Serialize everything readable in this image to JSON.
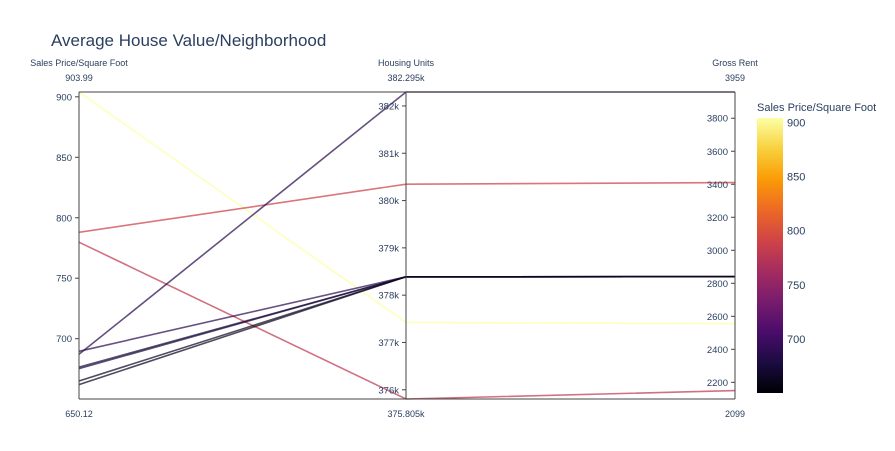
{
  "chart_data": {
    "type": "parallel_coordinates",
    "title": "Average House Value/Neighborhood",
    "dimensions": [
      {
        "label": "Sales Price/Square Foot",
        "range": [
          650.12,
          903.99
        ],
        "range_labels": {
          "max": "903.99",
          "min": "650.12"
        },
        "ticks": [
          700,
          750,
          800,
          850,
          900
        ],
        "tick_labels": [
          "700",
          "750",
          "800",
          "850",
          "900"
        ]
      },
      {
        "label": "Housing Units",
        "range": [
          375805,
          382295
        ],
        "range_labels": {
          "max": "382.295k",
          "min": "375.805k"
        },
        "ticks": [
          376000,
          377000,
          378000,
          379000,
          380000,
          381000,
          382000
        ],
        "tick_labels": [
          "376k",
          "377k",
          "378k",
          "379k",
          "380k",
          "381k",
          "382k"
        ]
      },
      {
        "label": "Gross Rent",
        "range": [
          2099,
          3959
        ],
        "range_labels": {
          "max": "3959",
          "min": "2099"
        },
        "ticks": [
          2200,
          2400,
          2600,
          2800,
          3000,
          3200,
          3400,
          3600,
          3800
        ],
        "tick_labels": [
          "2200",
          "2400",
          "2600",
          "2800",
          "3000",
          "3200",
          "3400",
          "3600",
          "3800"
        ]
      }
    ],
    "lines": [
      {
        "values": [
          903.99,
          377425,
          2555
        ],
        "color_value": 903.99
      },
      {
        "values": [
          788.0,
          380346,
          3410
        ],
        "color_value": 788.0
      },
      {
        "values": [
          779.8,
          375805,
          2150
        ],
        "color_value": 779.8
      },
      {
        "values": [
          687.1,
          382295,
          3959
        ],
        "color_value": 687.1
      },
      {
        "values": [
          689.6,
          378388,
          2840
        ],
        "color_value": 689.6
      },
      {
        "values": [
          676.5,
          378388,
          2840
        ],
        "color_value": 676.5
      },
      {
        "values": [
          675.3,
          378388,
          2840
        ],
        "color_value": 675.3
      },
      {
        "values": [
          665.0,
          378388,
          2840
        ],
        "color_value": 665.0
      },
      {
        "values": [
          662.0,
          378388,
          2840
        ],
        "color_value": 662.0
      }
    ],
    "colorbar": {
      "title": "Sales Price/Square Foot",
      "colorscale": "Inferno",
      "cmin": 650.12,
      "cmax": 903.99,
      "ticks": [
        700,
        750,
        800,
        850,
        900
      ],
      "tick_labels": [
        "700",
        "750",
        "800",
        "850",
        "900"
      ]
    }
  }
}
